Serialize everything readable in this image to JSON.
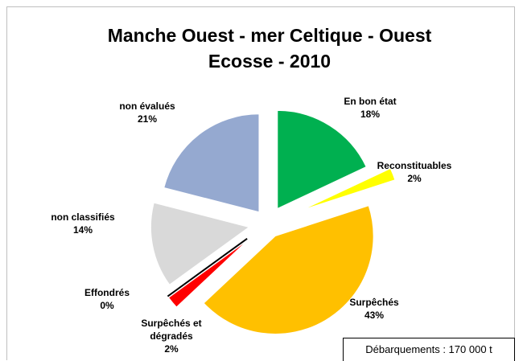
{
  "chart_data": {
    "type": "pie",
    "title": "Manche Ouest - mer Celtique - Ouest Ecosse - 2010",
    "categories": [
      "En bon état",
      "Reconstituables",
      "Surpêchés",
      "Surpêchés et dégradés",
      "Effondrés",
      "non classifiés",
      "non évalués"
    ],
    "values": [
      18,
      2,
      43,
      2,
      0,
      14,
      21
    ],
    "value_labels": [
      "18%",
      "2%",
      "43%",
      "2%",
      "0%",
      "14%",
      "21%"
    ],
    "colors": [
      "#00b050",
      "#ffff00",
      "#ffc000",
      "#ff0000",
      "#000000",
      "#d9d9d9",
      "#95a9d0"
    ],
    "annotation": "Débarquements : 170 000 t"
  }
}
